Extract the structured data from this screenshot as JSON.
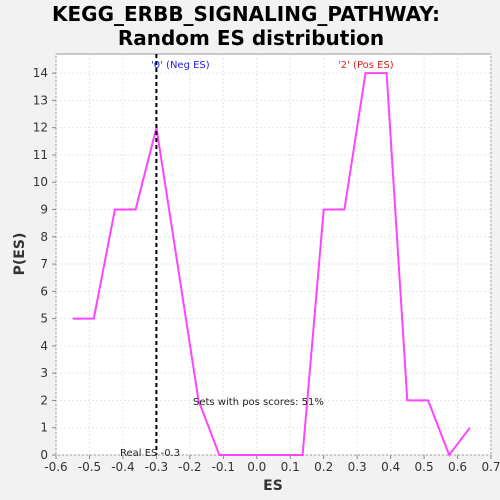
{
  "chart_data": {
    "type": "line",
    "title_line1": "KEGG_ERBB_SIGNALING_PATHWAY:",
    "title_line2": "Random ES distribution",
    "xlabel": "ES",
    "ylabel": "P(ES)",
    "xlim": [
      -0.6,
      0.7
    ],
    "ylim": [
      0,
      14.7
    ],
    "x_ticks": [
      "-0.6",
      "-0.5",
      "-0.4",
      "-0.3",
      "-0.2",
      "-0.1",
      "0.0",
      "0.1",
      "0.2",
      "0.3",
      "0.4",
      "0.5",
      "0.6",
      "0.7"
    ],
    "x_tick_values": [
      -0.6,
      -0.5,
      -0.4,
      -0.3,
      -0.2,
      -0.1,
      0.0,
      0.1,
      0.2,
      0.3,
      0.4,
      0.5,
      0.6,
      0.7
    ],
    "y_ticks": [
      "0",
      "1",
      "2",
      "3",
      "4",
      "5",
      "6",
      "7",
      "8",
      "9",
      "10",
      "11",
      "12",
      "13",
      "14"
    ],
    "y_tick_values": [
      0,
      1,
      2,
      3,
      4,
      5,
      6,
      7,
      8,
      9,
      10,
      11,
      12,
      13,
      14
    ],
    "grid": true,
    "series": [
      {
        "color": "#ff44ff",
        "x": [
          -0.55,
          -0.487,
          -0.424,
          -0.362,
          -0.3,
          -0.237,
          -0.174,
          -0.112,
          -0.05,
          0.012,
          0.075,
          0.137,
          0.2,
          0.262,
          0.325,
          0.388,
          0.45,
          0.512,
          0.575,
          0.637
        ],
        "y": [
          5,
          5,
          9,
          9,
          12,
          7,
          2,
          0,
          0,
          0,
          0,
          0,
          9,
          9,
          14,
          14,
          2,
          2,
          0,
          1
        ]
      }
    ],
    "real_es": {
      "value": -0.3,
      "label": "Real ES -0.3"
    },
    "annotations": {
      "neg_label": "'0' (Neg ES)",
      "neg_color": "#2222dd",
      "pos_label": "'2' (Pos ES)",
      "pos_color": "#dd2222",
      "pos_scores": "Sets with pos scores: 51%"
    }
  }
}
